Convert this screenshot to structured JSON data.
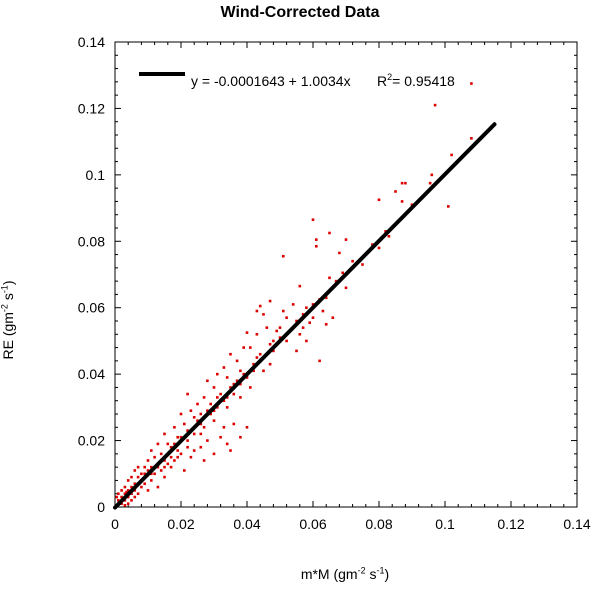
{
  "chart_data": {
    "type": "scatter",
    "title": "Wind-Corrected Data",
    "xlabel": "m*M (gm",
    "xlabel_exp1": "-2",
    "xlabel_mid": " s",
    "xlabel_exp2": "-1",
    "xlabel_end": ")",
    "ylabel": "RE (gm",
    "ylabel_exp1": "-2",
    "ylabel_mid": " s",
    "ylabel_exp2": "-1",
    "ylabel_end": ")",
    "xlim": [
      0,
      0.14
    ],
    "ylim": [
      0,
      0.14
    ],
    "xticks": [
      "0",
      "0.02",
      "0.04",
      "0.06",
      "0.08",
      "0.1",
      "0.12",
      "0.14"
    ],
    "yticks": [
      "0",
      "0.02",
      "0.04",
      "0.06",
      "0.08",
      "0.1",
      "0.12",
      "0.14"
    ],
    "fit_line": {
      "intercept": -0.0001643,
      "slope": 1.0034,
      "x_range": [
        0,
        0.115
      ],
      "color": "#000000"
    },
    "legend": {
      "equation": "y = -0.0001643 + 1.0034x",
      "r2_prefix": "R",
      "r2_exp": "2",
      "r2_value": "= 0.95418",
      "placement": "top-left"
    },
    "point_color": "#dd0000",
    "series": [
      {
        "values": [
          [
            0.097,
            0.121
          ],
          [
            0.108,
            0.1275
          ],
          [
            0.114,
            0.114
          ],
          [
            0.108,
            0.111
          ],
          [
            0.102,
            0.106
          ],
          [
            0.096,
            0.1
          ],
          [
            0.0955,
            0.0975
          ],
          [
            0.101,
            0.0905
          ],
          [
            0.087,
            0.0975
          ],
          [
            0.088,
            0.0975
          ],
          [
            0.085,
            0.095
          ],
          [
            0.087,
            0.092
          ],
          [
            0.08,
            0.0925
          ],
          [
            0.083,
            0.0815
          ],
          [
            0.08,
            0.078
          ],
          [
            0.065,
            0.0825
          ],
          [
            0.07,
            0.0805
          ],
          [
            0.06,
            0.0865
          ],
          [
            0.061,
            0.0805
          ],
          [
            0.068,
            0.0765
          ],
          [
            0.061,
            0.0785
          ],
          [
            0.069,
            0.0705
          ],
          [
            0.065,
            0.069
          ],
          [
            0.07,
            0.066
          ],
          [
            0.064,
            0.063
          ],
          [
            0.051,
            0.0755
          ],
          [
            0.056,
            0.0665
          ],
          [
            0.06,
            0.061
          ],
          [
            0.063,
            0.059
          ],
          [
            0.066,
            0.057
          ],
          [
            0.064,
            0.055
          ],
          [
            0.059,
            0.0555
          ],
          [
            0.055,
            0.056
          ],
          [
            0.057,
            0.054
          ],
          [
            0.052,
            0.057
          ],
          [
            0.051,
            0.059
          ],
          [
            0.054,
            0.061
          ],
          [
            0.047,
            0.062
          ],
          [
            0.045,
            0.058
          ],
          [
            0.043,
            0.059
          ],
          [
            0.044,
            0.0605
          ],
          [
            0.05,
            0.054
          ],
          [
            0.056,
            0.052
          ],
          [
            0.052,
            0.05
          ],
          [
            0.058,
            0.05
          ],
          [
            0.062,
            0.044
          ],
          [
            0.055,
            0.047
          ],
          [
            0.049,
            0.053
          ],
          [
            0.046,
            0.054
          ],
          [
            0.043,
            0.052
          ],
          [
            0.04,
            0.0525
          ],
          [
            0.041,
            0.048
          ],
          [
            0.047,
            0.049
          ],
          [
            0.043,
            0.045
          ],
          [
            0.039,
            0.048
          ],
          [
            0.035,
            0.046
          ],
          [
            0.037,
            0.044
          ],
          [
            0.045,
            0.041
          ],
          [
            0.047,
            0.043
          ],
          [
            0.038,
            0.041
          ],
          [
            0.033,
            0.042
          ],
          [
            0.034,
            0.039
          ],
          [
            0.031,
            0.04
          ],
          [
            0.028,
            0.038
          ],
          [
            0.03,
            0.036
          ],
          [
            0.036,
            0.034
          ],
          [
            0.041,
            0.036
          ],
          [
            0.038,
            0.033
          ],
          [
            0.033,
            0.032
          ],
          [
            0.029,
            0.031
          ],
          [
            0.027,
            0.033
          ],
          [
            0.025,
            0.031
          ],
          [
            0.022,
            0.034
          ],
          [
            0.023,
            0.029
          ],
          [
            0.026,
            0.028
          ],
          [
            0.034,
            0.03
          ],
          [
            0.036,
            0.025
          ],
          [
            0.03,
            0.026
          ],
          [
            0.027,
            0.024
          ],
          [
            0.02,
            0.028
          ],
          [
            0.021,
            0.025
          ],
          [
            0.018,
            0.024
          ],
          [
            0.024,
            0.022
          ],
          [
            0.028,
            0.02
          ],
          [
            0.032,
            0.021
          ],
          [
            0.034,
            0.019
          ],
          [
            0.026,
            0.018
          ],
          [
            0.022,
            0.02
          ],
          [
            0.019,
            0.021
          ],
          [
            0.016,
            0.019
          ],
          [
            0.015,
            0.022
          ],
          [
            0.02,
            0.016
          ],
          [
            0.023,
            0.015
          ],
          [
            0.027,
            0.014
          ],
          [
            0.03,
            0.016
          ],
          [
            0.035,
            0.017
          ],
          [
            0.038,
            0.021
          ],
          [
            0.04,
            0.024
          ],
          [
            0.033,
            0.024
          ],
          [
            0.024,
            0.017
          ],
          [
            0.018,
            0.014
          ],
          [
            0.014,
            0.016
          ],
          [
            0.013,
            0.019
          ],
          [
            0.011,
            0.017
          ],
          [
            0.017,
            0.012
          ],
          [
            0.021,
            0.011
          ],
          [
            0.013,
            0.013
          ],
          [
            0.01,
            0.014
          ],
          [
            0.012,
            0.01
          ],
          [
            0.009,
            0.012
          ],
          [
            0.015,
            0.009
          ],
          [
            0.011,
            0.008
          ],
          [
            0.008,
            0.01
          ],
          [
            0.009,
            0.007
          ],
          [
            0.007,
            0.009
          ],
          [
            0.006,
            0.011
          ],
          [
            0.01,
            0.005
          ],
          [
            0.006,
            0.007
          ],
          [
            0.005,
            0.009
          ],
          [
            0.008,
            0.006
          ],
          [
            0.005,
            0.006
          ],
          [
            0.004,
            0.008
          ],
          [
            0.007,
            0.004
          ],
          [
            0.004,
            0.005
          ],
          [
            0.003,
            0.006
          ],
          [
            0.006,
            0.003
          ],
          [
            0.003,
            0.004
          ],
          [
            0.002,
            0.005
          ],
          [
            0.005,
            0.002
          ],
          [
            0.002,
            0.003
          ],
          [
            0.001,
            0.004
          ],
          [
            0.004,
            0.001
          ],
          [
            0.001,
            0.002
          ],
          [
            0.002,
            0.001
          ],
          [
            0.003,
            0.002
          ],
          [
            0.001,
            0.001
          ],
          [
            0.0005,
            0.003
          ],
          [
            0.003,
            0.0005
          ],
          [
            0.012,
            0.015
          ],
          [
            0.016,
            0.013
          ],
          [
            0.019,
            0.017
          ],
          [
            0.014,
            0.011
          ],
          [
            0.01,
            0.011
          ],
          [
            0.008,
            0.008
          ],
          [
            0.013,
            0.006
          ],
          [
            0.015,
            0.012
          ],
          [
            0.007,
            0.012
          ],
          [
            0.005,
            0.004
          ],
          [
            0.009,
            0.01
          ],
          [
            0.011,
            0.012
          ],
          [
            0.017,
            0.018
          ],
          [
            0.025,
            0.026
          ],
          [
            0.029,
            0.028
          ],
          [
            0.031,
            0.033
          ],
          [
            0.037,
            0.038
          ],
          [
            0.042,
            0.043
          ],
          [
            0.046,
            0.046
          ],
          [
            0.05,
            0.051
          ],
          [
            0.053,
            0.053
          ],
          [
            0.048,
            0.047
          ],
          [
            0.044,
            0.044
          ],
          [
            0.039,
            0.04
          ],
          [
            0.035,
            0.036
          ],
          [
            0.031,
            0.03
          ],
          [
            0.026,
            0.025
          ],
          [
            0.022,
            0.023
          ],
          [
            0.018,
            0.019
          ],
          [
            0.02,
            0.021
          ],
          [
            0.024,
            0.027
          ],
          [
            0.028,
            0.029
          ],
          [
            0.032,
            0.034
          ],
          [
            0.036,
            0.037
          ],
          [
            0.04,
            0.039
          ],
          [
            0.044,
            0.046
          ],
          [
            0.048,
            0.05
          ],
          [
            0.057,
            0.058
          ],
          [
            0.06,
            0.057
          ],
          [
            0.072,
            0.074
          ],
          [
            0.075,
            0.073
          ],
          [
            0.078,
            0.079
          ],
          [
            0.082,
            0.083
          ],
          [
            0.09,
            0.091
          ],
          [
            0.093,
            0.093
          ],
          [
            0.062,
            0.0625
          ],
          [
            0.067,
            0.068
          ],
          [
            0.058,
            0.06
          ],
          [
            0.042,
            0.041
          ],
          [
            0.038,
            0.037
          ],
          [
            0.034,
            0.033
          ],
          [
            0.03,
            0.029
          ],
          [
            0.026,
            0.022
          ],
          [
            0.022,
            0.018
          ],
          [
            0.019,
            0.015
          ],
          [
            0.017,
            0.015
          ],
          [
            0.015,
            0.014
          ],
          [
            0.013,
            0.012
          ],
          [
            0.011,
            0.01
          ],
          [
            0.009,
            0.009
          ],
          [
            0.007,
            0.007
          ],
          [
            0.006,
            0.005
          ],
          [
            0.004,
            0.003
          ],
          [
            0.0025,
            0.0025
          ],
          [
            0.0015,
            0.0015
          ],
          [
            0.0035,
            0.0045
          ]
        ]
      }
    ]
  }
}
